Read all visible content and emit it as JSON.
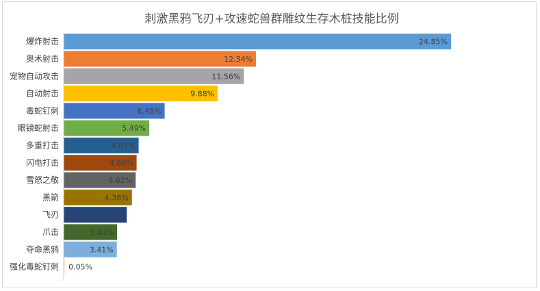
{
  "chart_data": {
    "type": "bar",
    "orientation": "horizontal",
    "title": "刺激黑鸦飞刃+攻速蛇兽群雕纹生存木桩技能比例",
    "xlabel": "",
    "ylabel": "",
    "xlim": [
      0,
      26
    ],
    "grid": false,
    "legend": "none",
    "categories": [
      "爆炸射击",
      "奥术射击",
      "宠物自动攻击",
      "自动射击",
      "毒蛇钉刺",
      "眼镜蛇射击",
      "多重打击",
      "闪电打击",
      "雪怒之敬",
      "黑箭",
      "飞刃",
      "爪击",
      "夺命黑鸦",
      "强化毒蛇钉刺"
    ],
    "values": [
      24.85,
      12.34,
      11.56,
      9.88,
      6.48,
      5.49,
      4.81,
      4.68,
      4.62,
      4.38,
      4.05,
      3.43,
      3.41,
      0.05
    ],
    "data_labels": [
      "24.85%",
      "12.34%",
      "11.56%",
      "9.88%",
      "6.48%",
      "5.49%",
      "4.81%",
      "4.68%",
      "4.62%",
      "4.38%",
      "",
      "3.43%",
      "3.41%",
      "0.05%"
    ],
    "colors": [
      "#5b9bd5",
      "#ed7d31",
      "#a5a5a5",
      "#ffc000",
      "#4472c4",
      "#70ad47",
      "#255e91",
      "#9e480e",
      "#636363",
      "#997300",
      "#264478",
      "#43682b",
      "#7cafdd",
      "#f1975a"
    ],
    "label_color": "#404040",
    "axis_color": "#d9d9d9"
  }
}
